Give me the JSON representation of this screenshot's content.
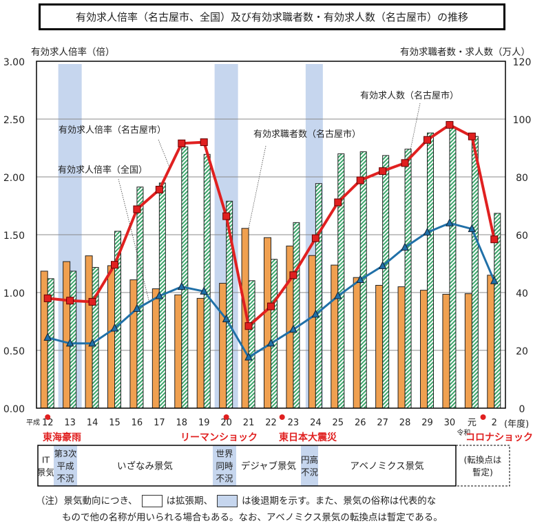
{
  "title": "有効求人倍率（名古屋市、全国）及び有効求職者数・有効求人数（名古屋市）の推移",
  "chart_data": {
    "type": "bar+line",
    "categories": [
      "12",
      "13",
      "14",
      "15",
      "16",
      "17",
      "18",
      "19",
      "20",
      "21",
      "22",
      "23",
      "24",
      "25",
      "26",
      "27",
      "28",
      "29",
      "30",
      "元",
      "2"
    ],
    "era_labels": {
      "heisei": "平成",
      "reiwa": "令和"
    },
    "x_unit": "(年度)",
    "left_axis": {
      "label": "有効求人倍率（倍）",
      "ylim": [
        0,
        3
      ],
      "ticks": [
        "0.00",
        "0.50",
        "1.00",
        "1.50",
        "2.00",
        "2.50",
        "3.00"
      ]
    },
    "right_axis": {
      "label": "有効求職者数・求人数（万人）",
      "ylim": [
        0,
        120
      ],
      "ticks": [
        "0",
        "20",
        "40",
        "60",
        "80",
        "100",
        "120"
      ]
    },
    "grid": true,
    "series": [
      {
        "name": "有効求職者数（名古屋市）",
        "type": "bar",
        "axis": "right",
        "color": "#f0a050",
        "values": [
          47.4,
          50.7,
          52.7,
          49.3,
          44.4,
          41.3,
          39.2,
          38.0,
          43.2,
          62.2,
          59.0,
          56.1,
          52.8,
          49.5,
          45.2,
          42.5,
          42.0,
          40.8,
          39.4,
          39.6,
          46.0
        ]
      },
      {
        "name": "有効求人数（名古屋市）",
        "type": "bar",
        "axis": "right",
        "color": "#3aa66a",
        "pattern": "hatched",
        "values": [
          44.8,
          47.4,
          48.7,
          61.2,
          76.5,
          77.9,
          90.4,
          87.8,
          71.6,
          44.1,
          51.5,
          64.2,
          77.7,
          88.0,
          88.7,
          87.4,
          89.6,
          95.2,
          97.1,
          94.0,
          67.4
        ]
      },
      {
        "name": "有効求人倍率（名古屋市）",
        "type": "line",
        "axis": "left",
        "color": "#e02020",
        "marker": "square",
        "values": [
          0.95,
          0.93,
          0.92,
          1.24,
          1.72,
          1.89,
          2.29,
          2.3,
          1.66,
          0.71,
          0.88,
          1.15,
          1.47,
          1.78,
          1.97,
          2.05,
          2.12,
          2.32,
          2.45,
          2.35,
          1.46
        ]
      },
      {
        "name": "有効求人倍率（全国）",
        "type": "line",
        "axis": "left",
        "color": "#2070a8",
        "marker": "triangle",
        "values": [
          0.61,
          0.56,
          0.56,
          0.69,
          0.86,
          0.97,
          1.05,
          1.01,
          0.77,
          0.44,
          0.56,
          0.68,
          0.81,
          0.97,
          1.11,
          1.23,
          1.39,
          1.52,
          1.6,
          1.55,
          1.1
        ]
      }
    ],
    "recession_bands": [
      "13",
      "20",
      "24"
    ],
    "band_color": "#c6d6ee",
    "events": [
      {
        "label": "東海豪雨",
        "at": "12"
      },
      {
        "label": "リーマンショック",
        "at": "20"
      },
      {
        "label": "東日本大震災",
        "at": "22.5"
      },
      {
        "label": "コロナショック",
        "at": "元.5"
      }
    ],
    "event_color": "#e02020"
  },
  "cycles": [
    {
      "label": "IT\n景気",
      "shaded": false
    },
    {
      "label": "第3次\n平成\n不況",
      "shaded": true
    },
    {
      "label": "いざなみ景気",
      "shaded": false
    },
    {
      "label": "世界\n同時\n不況",
      "shaded": true
    },
    {
      "label": "デジャブ景気",
      "shaded": false
    },
    {
      "label": "円高\n不況",
      "shaded": true
    },
    {
      "label": "アベノミクス景気",
      "shaded": false
    },
    {
      "label": "(転換点は\n暫定)",
      "shaded": false,
      "dashed": true
    }
  ],
  "note": {
    "part1": "（注）景気動向につき、",
    "part2": "は拡張期、",
    "part3": "は後退期を示す。また、景気の俗称は代表的な",
    "line2": "もので他の名称が用いられる場合もある。なお、アベノミクス景気の転換点は暫定である。"
  }
}
